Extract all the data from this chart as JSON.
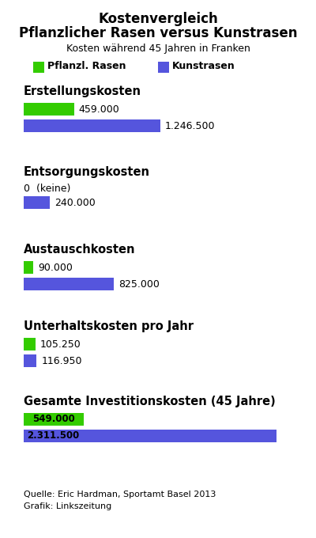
{
  "title_line1": "Kostenvergleich",
  "title_line2": "Pflanzlicher Rasen versus Kunstrasen",
  "subtitle": "Kosten während 45 Jahren in Franken",
  "legend_green": "Pflanzl. Rasen",
  "legend_blue": "Kunstrasen",
  "green_color": "#33cc00",
  "blue_color": "#5555dd",
  "bg_color": "#ffffff",
  "sections": [
    {
      "title": "Erstellungskosten",
      "green_value": 459000,
      "blue_value": 1246500,
      "green_label": "459.000",
      "blue_label": "1.246.500",
      "green_zero": false
    },
    {
      "title": "Entsorgungskosten",
      "green_value": 0,
      "blue_value": 240000,
      "green_label": "0  (keine)",
      "blue_label": "240.000",
      "green_zero": true
    },
    {
      "title": "Austauschkosten",
      "green_value": 90000,
      "blue_value": 825000,
      "green_label": "90.000",
      "blue_label": "825.000",
      "green_zero": false
    },
    {
      "title": "Unterhaltskosten pro Jahr",
      "green_value": 105250,
      "blue_value": 116950,
      "green_label": "105.250",
      "blue_label": "116.950",
      "green_zero": false
    },
    {
      "title": "Gesamte Investitionskosten (45 Jahre)",
      "green_value": 549000,
      "blue_value": 2311500,
      "green_label": "549.000",
      "blue_label": "2.311.500",
      "green_zero": false
    }
  ],
  "max_value": 2311500,
  "source_text": "Quelle: Eric Hardman, Sportamt Basel 2013\nGrafik: Linkszeitung",
  "fig_width": 4.0,
  "fig_height": 6.8,
  "dpi": 100
}
